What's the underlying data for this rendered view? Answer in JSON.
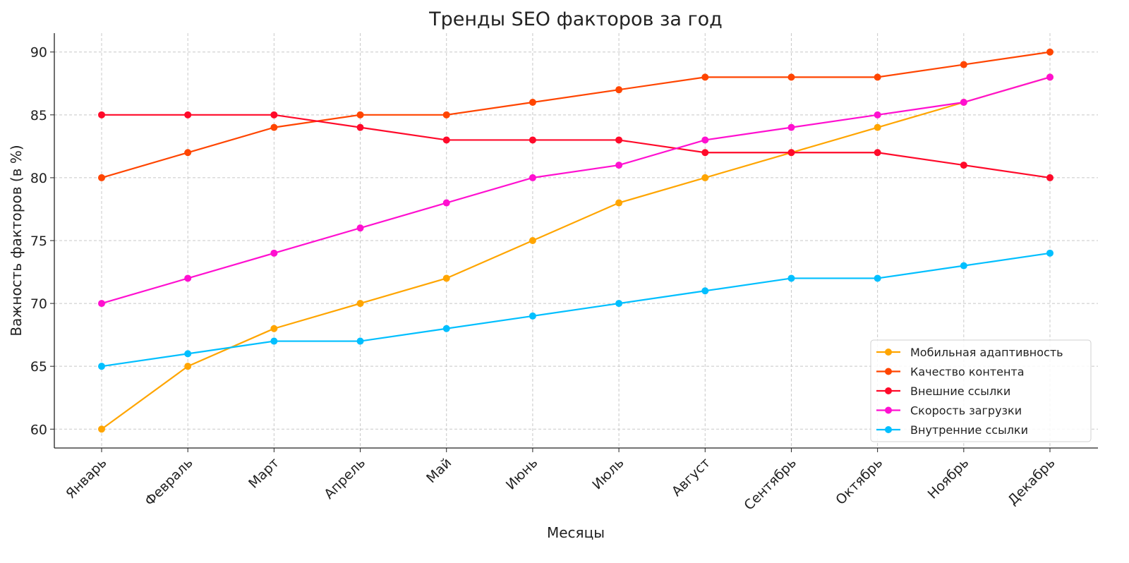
{
  "chart_data": {
    "type": "line",
    "title": "Тренды SEO факторов за год",
    "xlabel": "Месяцы",
    "ylabel": "Важность факторов (в %)",
    "categories": [
      "Январь",
      "Февраль",
      "Март",
      "Апрель",
      "Май",
      "Июнь",
      "Июль",
      "Август",
      "Сентябрь",
      "Октябрь",
      "Ноябрь",
      "Декабрь"
    ],
    "ylim": [
      58.5,
      91.5
    ],
    "yticks": [
      60,
      65,
      70,
      75,
      80,
      85,
      90
    ],
    "grid": true,
    "legend_position": "bottom-right",
    "series": [
      {
        "name": "Мобильная адаптивность",
        "color": "#FFA500",
        "values": [
          60,
          65,
          68,
          70,
          72,
          75,
          78,
          80,
          82,
          84,
          86,
          88
        ]
      },
      {
        "name": "Качество контента",
        "color": "#FF4500",
        "values": [
          80,
          82,
          84,
          85,
          85,
          86,
          87,
          88,
          88,
          88,
          89,
          90
        ]
      },
      {
        "name": "Внешние ссылки",
        "color": "#FF0A2A",
        "values": [
          85,
          85,
          85,
          84,
          83,
          83,
          83,
          82,
          82,
          82,
          81,
          80
        ]
      },
      {
        "name": "Скорость загрузки",
        "color": "#FF10D0",
        "values": [
          70,
          72,
          74,
          76,
          78,
          80,
          81,
          83,
          84,
          85,
          86,
          88
        ]
      },
      {
        "name": "Внутренние ссылки",
        "color": "#00BFFF",
        "values": [
          65,
          66,
          67,
          67,
          68,
          69,
          70,
          71,
          72,
          72,
          73,
          74
        ]
      }
    ]
  }
}
